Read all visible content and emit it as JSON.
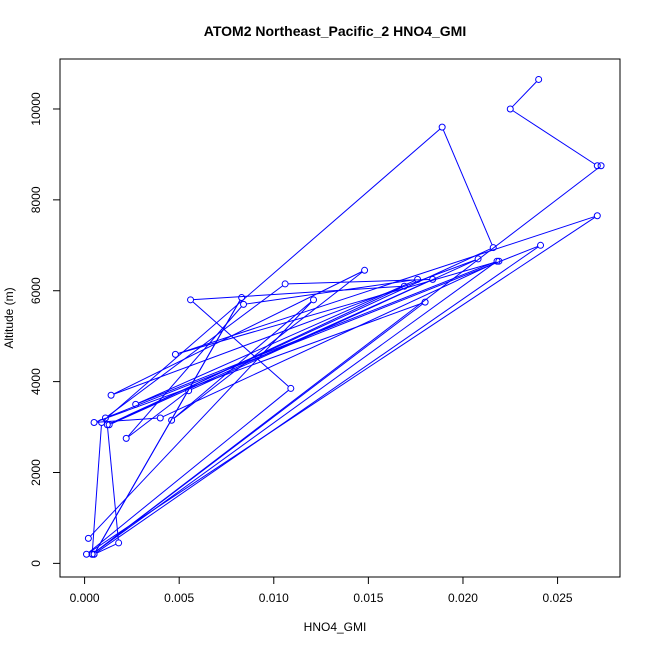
{
  "chart_data": {
    "type": "line",
    "title": "ATOM2 Northeast_Pacific_2 HNO4_GMI",
    "xlabel": "HNO4_GMI",
    "ylabel": "Altitude (m)",
    "xlim": [
      -0.0013,
      0.0283
    ],
    "ylim": [
      -300,
      11100
    ],
    "x_ticks": [
      0.0,
      0.005,
      0.01,
      0.015,
      0.02,
      0.025
    ],
    "x_tick_labels": [
      "0.000",
      "0.005",
      "0.010",
      "0.015",
      "0.020",
      "0.025"
    ],
    "y_ticks": [
      0,
      2000,
      4000,
      6000,
      8000,
      10000
    ],
    "y_tick_labels": [
      "0",
      "2000",
      "4000",
      "6000",
      "8000",
      "10000"
    ],
    "series": [
      {
        "color": "#0000ff",
        "marker": "open-circle",
        "x": [
          0.024,
          0.0225,
          0.0271,
          0.0273,
          0.0004,
          0.0009,
          0.0189,
          0.0216,
          0.0012,
          0.0018,
          0.0005,
          0.0083,
          0.0005,
          0.0241,
          0.0011,
          0.0106,
          0.0184,
          0.0013,
          0.0169,
          0.0056,
          0.0109,
          0.0001,
          0.0271,
          0.0048,
          0.0219,
          0.004,
          0.0005,
          0.018,
          0.0004,
          0.0218,
          0.0027,
          0.0176,
          0.0084,
          0.0022,
          0.0055,
          0.0208,
          0.0014,
          0.0148,
          0.0046,
          0.0121,
          0.0002
        ],
        "y": [
          10650,
          10000,
          8750,
          8750,
          200,
          3100,
          9600,
          6950,
          3050,
          450,
          200,
          5850,
          200,
          7000,
          3200,
          6150,
          6250,
          3050,
          6100,
          5800,
          3850,
          200,
          7650,
          4600,
          6650,
          3200,
          3100,
          5750,
          200,
          6650,
          3500,
          6250,
          5700,
          2750,
          3800,
          6700,
          3700,
          6450,
          3150,
          5800,
          550
        ]
      }
    ]
  }
}
